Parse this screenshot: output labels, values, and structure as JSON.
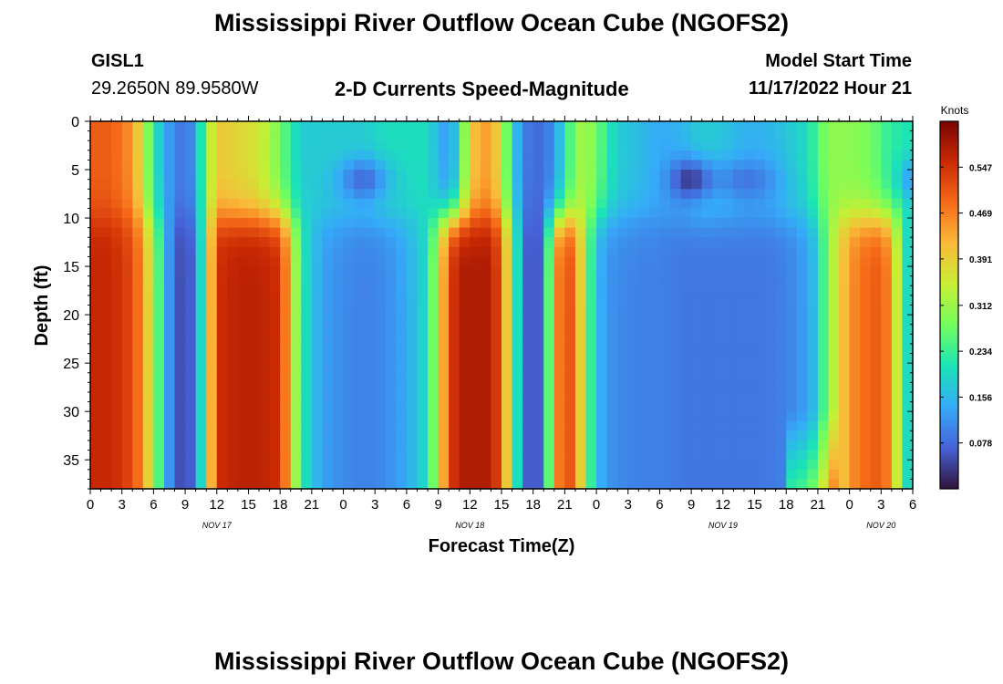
{
  "page": {
    "title_top": "Mississippi River Outflow Ocean Cube (NGOFS2)",
    "title_bottom": "Mississippi River Outflow Ocean Cube (NGOFS2)",
    "station_id": "GISL1",
    "station_coords": "29.2650N  89.9580W",
    "subtitle": "2-D Currents Speed-Magnitude",
    "model_start_label": "Model Start Time",
    "model_start_value": "11/17/2022 Hour 21"
  },
  "chart_data": {
    "type": "heatmap",
    "title": "2-D Currents Speed-Magnitude",
    "xlabel": "Forecast Time(Z)",
    "ylabel": "Depth (ft)",
    "x_ticks_hours": [
      "0",
      "3",
      "6",
      "9",
      "12",
      "15",
      "18",
      "21",
      "0",
      "3",
      "6",
      "9",
      "12",
      "15",
      "18",
      "21",
      "0",
      "3",
      "6",
      "9",
      "12",
      "15",
      "18",
      "21",
      "0",
      "3",
      "6"
    ],
    "date_labels": [
      {
        "label": "NOV 17",
        "hour_index": 12
      },
      {
        "label": "NOV 18",
        "hour_index": 36
      },
      {
        "label": "NOV 19",
        "hour_index": 60
      },
      {
        "label": "NOV 20",
        "hour_index": 75
      }
    ],
    "xlim_hours": [
      0,
      78
    ],
    "y_ticks": [
      "0",
      "5",
      "10",
      "15",
      "20",
      "25",
      "30",
      "35"
    ],
    "ylim": [
      0,
      38
    ],
    "y_inverted": true,
    "colorbar": {
      "unit_label": "Knots",
      "range": [
        0.0,
        0.625
      ],
      "ticks": [
        "0.078",
        "0.156",
        "0.234",
        "0.312",
        "0.391",
        "0.469",
        "0.547"
      ],
      "colormap": [
        "#30123b",
        "#4662d7",
        "#36aaf9",
        "#1ae4b6",
        "#72fe5e",
        "#c7ef34",
        "#faba39",
        "#f66b19",
        "#cb2a04",
        "#7a0403"
      ]
    },
    "profile_values": {
      "time_hours": [
        0,
        2,
        4,
        5,
        6,
        7,
        8,
        9,
        10,
        11,
        12,
        14,
        16,
        18,
        19,
        20,
        22,
        24,
        26,
        28,
        30,
        32,
        33,
        34,
        35,
        36,
        38,
        39,
        40,
        41,
        42,
        43,
        44,
        45,
        46,
        47,
        48,
        49,
        50,
        52,
        54,
        56,
        58,
        60,
        62,
        64,
        66,
        68,
        69,
        70,
        72,
        74,
        75,
        76,
        77,
        78
      ],
      "surface_knots": [
        0.5,
        0.5,
        0.45,
        0.35,
        0.22,
        0.15,
        0.1,
        0.09,
        0.12,
        0.3,
        0.4,
        0.38,
        0.36,
        0.28,
        0.22,
        0.18,
        0.18,
        0.18,
        0.18,
        0.2,
        0.2,
        0.2,
        0.15,
        0.12,
        0.2,
        0.4,
        0.45,
        0.35,
        0.2,
        0.1,
        0.08,
        0.08,
        0.12,
        0.2,
        0.3,
        0.32,
        0.28,
        0.22,
        0.18,
        0.16,
        0.14,
        0.15,
        0.18,
        0.17,
        0.15,
        0.15,
        0.17,
        0.2,
        0.25,
        0.3,
        0.3,
        0.28,
        0.25,
        0.22,
        0.22,
        0.2
      ],
      "deep_knots": [
        0.56,
        0.56,
        0.52,
        0.45,
        0.32,
        0.18,
        0.06,
        0.05,
        0.08,
        0.3,
        0.55,
        0.57,
        0.57,
        0.55,
        0.4,
        0.22,
        0.13,
        0.11,
        0.1,
        0.11,
        0.14,
        0.2,
        0.35,
        0.52,
        0.58,
        0.58,
        0.58,
        0.5,
        0.3,
        0.1,
        0.03,
        0.1,
        0.42,
        0.53,
        0.48,
        0.3,
        0.16,
        0.12,
        0.11,
        0.1,
        0.1,
        0.09,
        0.09,
        0.09,
        0.09,
        0.09,
        0.1,
        0.13,
        0.18,
        0.3,
        0.45,
        0.5,
        0.5,
        0.45,
        0.25,
        0.14
      ]
    }
  }
}
